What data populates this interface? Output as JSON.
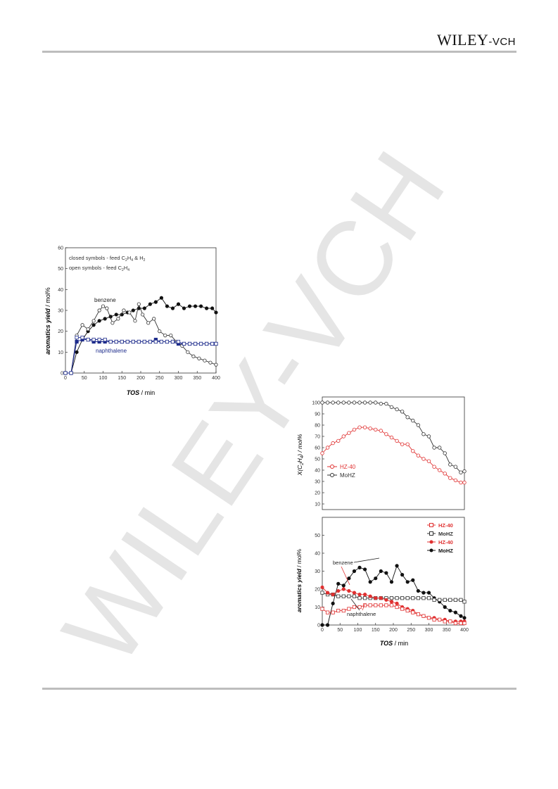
{
  "header": {
    "brand_main": "WILEY",
    "brand_suffix": "-VCH"
  },
  "watermark": {
    "text": "WILEY-VCH"
  },
  "figure_left": {
    "annotations": [
      "closed symbols - feed C",
      "2",
      "H",
      "4",
      " & H",
      "2",
      "open symbols - feed C",
      "2",
      "H",
      "4"
    ],
    "ann1": {
      "a": "closed symbols - feed C",
      "s1": "2",
      "b": "H",
      "s2": "4",
      "c": " & H",
      "s3": "2"
    },
    "ann2": {
      "a": "open symbols - feed C",
      "s1": "2",
      "b": "H",
      "s2": "4"
    },
    "ylabel_bold": "aromatics yield",
    "ylabel_unit": " / mol%",
    "xlabel_bold": "TOS",
    "xlabel_unit": " / min",
    "label_benzene": "benzene",
    "label_naphthalene": "naphthalene"
  },
  "figure_right_top": {
    "ylabel": "X(C",
    "ylabel_sub1": "2",
    "ylabel_mid": "H",
    "ylabel_sub2": "4",
    "ylabel_end": ") / mol%",
    "legend": [
      {
        "name": "HZ-40",
        "color": "#e03030"
      },
      {
        "name": "MoHZ",
        "color": "#333333"
      }
    ]
  },
  "figure_right_bottom": {
    "ylabel_bold": "aromatics yield",
    "ylabel_unit": " / mol%",
    "xlabel_bold": "TOS",
    "xlabel_unit": " / min",
    "legend": [
      {
        "name": "HZ-40",
        "color": "#e03030",
        "marker": "open-square"
      },
      {
        "name": "MoHZ",
        "color": "#333333",
        "marker": "open-square"
      },
      {
        "name": "HZ-40",
        "color": "#e03030",
        "marker": "filled-circle"
      },
      {
        "name": "MoHZ",
        "color": "#111111",
        "marker": "filled-circle"
      }
    ],
    "label_benzene": "benzene",
    "label_naphthalene": "naphthalene"
  },
  "chart_data": [
    {
      "type": "line",
      "xlim": [
        0,
        400
      ],
      "ylim": [
        0,
        60
      ],
      "xticks": [
        0,
        50,
        100,
        150,
        200,
        250,
        300,
        350,
        400
      ],
      "yticks": [
        0,
        10,
        20,
        30,
        40,
        50,
        60
      ],
      "series": [
        {
          "color": "#111111",
          "marker": "filled-circle",
          "x": [
            0,
            15,
            30,
            45,
            60,
            75,
            90,
            105,
            120,
            135,
            150,
            165,
            180,
            195,
            210,
            225,
            240,
            255,
            270,
            285,
            300,
            315,
            330,
            345,
            360,
            375,
            390,
            400
          ],
          "y": [
            0,
            0,
            10,
            16,
            20,
            23,
            25,
            26,
            27,
            28,
            28,
            29,
            30,
            31,
            31,
            33,
            34,
            36,
            32,
            31,
            33,
            31,
            32,
            32,
            32,
            31,
            31,
            29
          ]
        },
        {
          "color": "#333333",
          "marker": "open-circle",
          "x": [
            0,
            15,
            30,
            45,
            60,
            75,
            90,
            100,
            110,
            125,
            140,
            155,
            170,
            185,
            195,
            205,
            220,
            235,
            250,
            265,
            280,
            295,
            310,
            325,
            340,
            355,
            370,
            385,
            400
          ],
          "y": [
            0,
            0,
            18,
            23,
            21,
            25,
            30,
            32,
            31,
            24,
            26,
            30,
            29,
            25,
            33,
            28,
            24,
            26,
            20,
            18,
            18,
            15,
            13,
            10,
            8,
            7,
            6,
            5,
            4
          ]
        },
        {
          "color": "#1f2d8c",
          "marker": "filled-square",
          "x": [
            0,
            15,
            30,
            45,
            60,
            75,
            90,
            105,
            120,
            135,
            150,
            165,
            180,
            195,
            210,
            225,
            240,
            255,
            270,
            285,
            300,
            315,
            330,
            345,
            360,
            375,
            390,
            400
          ],
          "y": [
            0,
            0,
            15,
            16,
            16,
            15,
            15,
            15,
            15,
            15,
            15,
            15,
            15,
            15,
            15,
            15,
            16,
            15,
            15,
            15,
            14,
            14,
            14,
            14,
            14,
            14,
            14,
            14
          ]
        },
        {
          "color": "#1f2d8c",
          "marker": "open-square",
          "x": [
            0,
            15,
            30,
            45,
            60,
            75,
            90,
            105,
            120,
            135,
            150,
            165,
            180,
            195,
            210,
            225,
            240,
            255,
            270,
            285,
            300,
            315,
            330,
            345,
            360,
            375,
            390,
            400
          ],
          "y": [
            0,
            0,
            17,
            17,
            16,
            16,
            16,
            16,
            15,
            15,
            15,
            15,
            15,
            15,
            15,
            15,
            15,
            15,
            15,
            15,
            15,
            14,
            14,
            14,
            14,
            14,
            14,
            14
          ]
        }
      ]
    },
    {
      "type": "line",
      "xlim": [
        0,
        400
      ],
      "ylim": [
        5,
        105
      ],
      "yticks": [
        10,
        20,
        30,
        40,
        50,
        60,
        70,
        80,
        90,
        100
      ],
      "series": [
        {
          "name": "MoHZ",
          "color": "#333333",
          "marker": "open-circle",
          "x": [
            0,
            15,
            30,
            45,
            60,
            75,
            90,
            105,
            120,
            135,
            150,
            165,
            180,
            195,
            210,
            225,
            240,
            255,
            270,
            285,
            300,
            315,
            330,
            345,
            360,
            375,
            390,
            400
          ],
          "y": [
            100,
            100,
            100,
            100,
            100,
            100,
            100,
            100,
            100,
            100,
            100,
            99,
            99,
            96,
            94,
            92,
            87,
            84,
            80,
            72,
            70,
            60,
            60,
            55,
            45,
            43,
            38,
            39
          ]
        },
        {
          "name": "HZ-40",
          "color": "#e03030",
          "marker": "open-circle",
          "x": [
            0,
            15,
            30,
            45,
            60,
            75,
            90,
            105,
            120,
            135,
            150,
            165,
            180,
            195,
            210,
            225,
            240,
            255,
            270,
            285,
            300,
            315,
            330,
            345,
            360,
            375,
            390,
            400
          ],
          "y": [
            55,
            60,
            64,
            66,
            70,
            73,
            76,
            78,
            78,
            77,
            76,
            75,
            72,
            69,
            66,
            63,
            63,
            57,
            53,
            50,
            48,
            43,
            40,
            37,
            33,
            31,
            29,
            29
          ]
        }
      ]
    },
    {
      "type": "line",
      "xlim": [
        0,
        400
      ],
      "ylim": [
        0,
        60
      ],
      "xticks": [
        0,
        50,
        100,
        150,
        200,
        250,
        300,
        350,
        400
      ],
      "yticks": [
        0,
        10,
        20,
        30,
        40,
        50
      ],
      "series": [
        {
          "name": "MoHZ",
          "color": "#111111",
          "marker": "filled-circle",
          "x": [
            0,
            15,
            30,
            45,
            60,
            75,
            90,
            105,
            120,
            135,
            150,
            165,
            180,
            195,
            210,
            225,
            240,
            255,
            270,
            285,
            300,
            315,
            330,
            345,
            360,
            375,
            390,
            400
          ],
          "y": [
            0,
            0,
            12,
            23,
            22,
            26,
            30,
            32,
            31,
            24,
            26,
            30,
            29,
            24,
            33,
            28,
            24,
            25,
            19,
            18,
            18,
            15,
            13,
            10,
            8,
            7,
            5,
            4
          ]
        },
        {
          "name": "MoHZ",
          "color": "#333333",
          "marker": "open-square",
          "x": [
            0,
            15,
            30,
            45,
            60,
            75,
            90,
            105,
            120,
            135,
            150,
            165,
            180,
            195,
            210,
            225,
            240,
            255,
            270,
            285,
            300,
            315,
            330,
            345,
            360,
            375,
            390,
            400
          ],
          "y": [
            18,
            17,
            17,
            16,
            16,
            16,
            16,
            15,
            15,
            15,
            15,
            15,
            15,
            15,
            15,
            15,
            15,
            15,
            15,
            15,
            15,
            14,
            14,
            14,
            14,
            14,
            14,
            13
          ]
        },
        {
          "name": "HZ-40",
          "color": "#e03030",
          "marker": "filled-circle",
          "x": [
            0,
            15,
            30,
            45,
            60,
            75,
            90,
            105,
            120,
            135,
            150,
            165,
            180,
            195,
            210,
            225,
            240,
            255,
            270,
            285,
            300,
            315,
            330,
            345,
            360,
            375,
            390,
            400
          ],
          "y": [
            21,
            18,
            17,
            19,
            20,
            19,
            18,
            17,
            17,
            16,
            15,
            15,
            14,
            13,
            12,
            10,
            9,
            8,
            6,
            5,
            4,
            4,
            3,
            3,
            2,
            2,
            2,
            2
          ]
        },
        {
          "name": "HZ-40",
          "color": "#e03030",
          "marker": "open-square",
          "x": [
            0,
            15,
            30,
            45,
            60,
            75,
            90,
            105,
            120,
            135,
            150,
            165,
            180,
            195,
            210,
            225,
            240,
            255,
            270,
            285,
            300,
            315,
            330,
            345,
            360,
            375,
            390,
            400
          ],
          "y": [
            9,
            7,
            7,
            8,
            8,
            9,
            10,
            10,
            11,
            11,
            11,
            11,
            11,
            11,
            10,
            9,
            8,
            7,
            6,
            5,
            4,
            3,
            3,
            2,
            2,
            1,
            1,
            1
          ]
        }
      ]
    }
  ]
}
